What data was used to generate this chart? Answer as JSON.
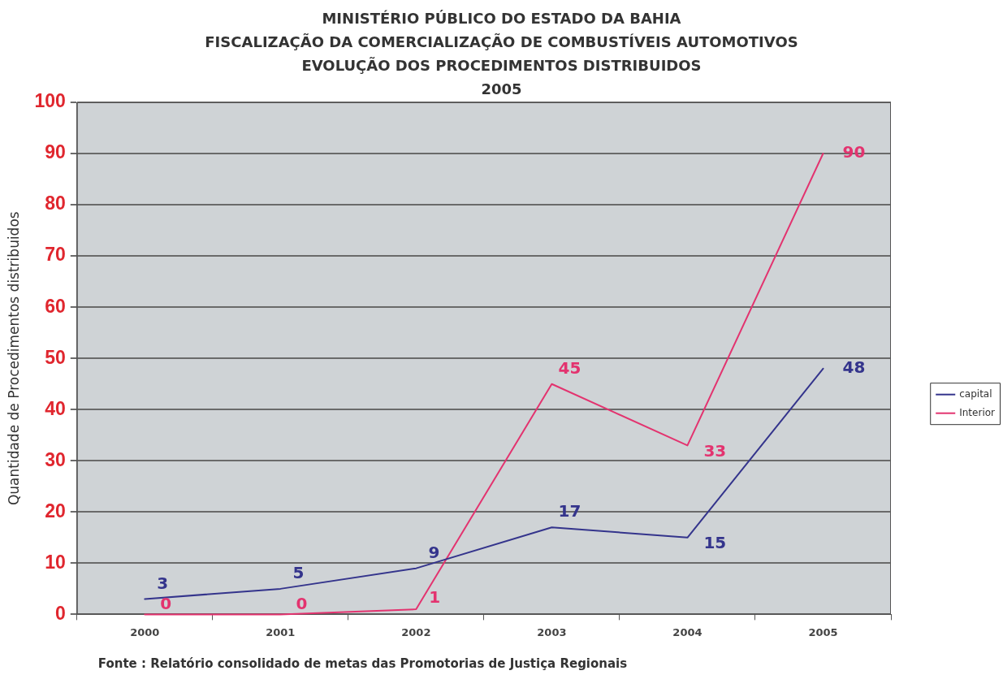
{
  "chart_data": {
    "type": "line",
    "title": "MINISTÉRIO PÚBLICO DO ESTADO DA BAHIA\nFISCALIZAÇÃO DA COMERCIALIZAÇÃO DE COMBUSTÍVEIS AUTOMOTIVOS\nEVOLUÇÃO DOS PROCEDIMENTOS DISTRIBUIDOS\n2005",
    "ylabel": "Quantidade de Procedimentos distribuidos",
    "categories": [
      "2000",
      "2001",
      "2002",
      "2003",
      "2004",
      "2005"
    ],
    "series": [
      {
        "name": "capital",
        "color": "#34348c",
        "values": [
          3,
          5,
          9,
          17,
          15,
          48
        ]
      },
      {
        "name": "Interior",
        "color": "#e3336f",
        "values": [
          0,
          0,
          1,
          45,
          33,
          90
        ]
      }
    ],
    "ylim": [
      0,
      100
    ],
    "yticks": [
      0,
      10,
      20,
      30,
      40,
      50,
      60,
      70,
      80,
      90,
      100
    ],
    "grid": "y",
    "legend": "right",
    "data_labels": true,
    "annotations": [
      "Fonte : Relatório consolidado de metas das Promotorias de Justiça Regionais"
    ]
  }
}
